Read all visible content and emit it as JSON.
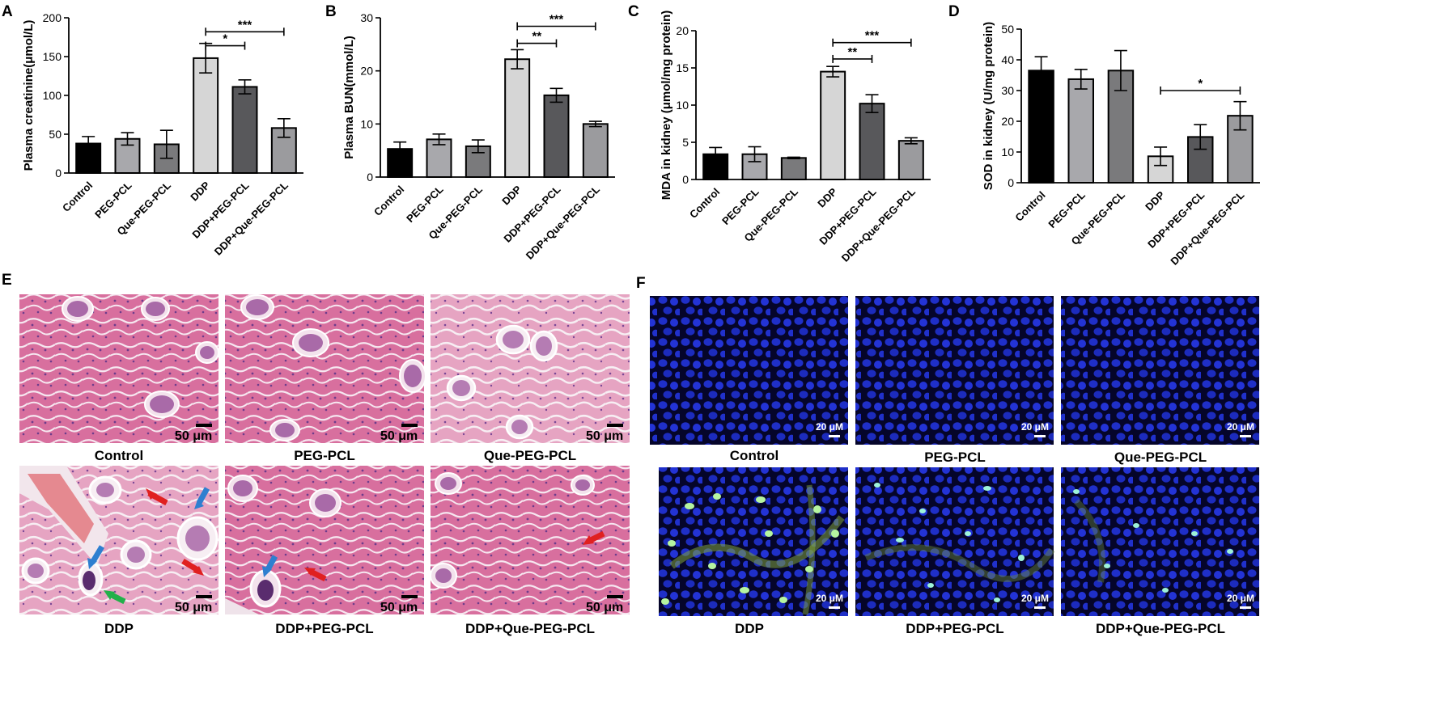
{
  "chart_data": [
    {
      "panel": "A",
      "type": "bar",
      "ylabel": "Plasma creatinine(μmol/L)",
      "categories": [
        "Control",
        "PEG-PCL",
        "Que-PEG-PCL",
        "DDP",
        "DDP+PEG-PCL",
        "DDP+Que-PEG-PCL"
      ],
      "values": [
        38,
        44,
        37,
        148,
        111,
        58
      ],
      "errors": [
        9,
        8,
        18,
        19,
        9,
        12
      ],
      "ylim": [
        0,
        200
      ],
      "yticks": [
        0,
        50,
        100,
        150,
        200
      ],
      "significance": [
        {
          "from": 3,
          "to": 4,
          "label": "*",
          "y": 164
        },
        {
          "from": 3,
          "to": 5,
          "label": "***",
          "y": 182
        }
      ]
    },
    {
      "panel": "B",
      "type": "bar",
      "ylabel": "Plasma BUN(mmol/L)",
      "categories": [
        "Control",
        "PEG-PCL",
        "Que-PEG-PCL",
        "DDP",
        "DDP+PEG-PCL",
        "DDP+Que-PEG-PCL"
      ],
      "values": [
        5.3,
        7.1,
        5.8,
        22.2,
        15.4,
        10.0
      ],
      "errors": [
        1.3,
        1.0,
        1.2,
        1.8,
        1.3,
        0.5
      ],
      "ylim": [
        0,
        30
      ],
      "yticks": [
        0,
        10,
        20,
        30
      ],
      "significance": [
        {
          "from": 3,
          "to": 4,
          "label": "**",
          "y": 25.2
        },
        {
          "from": 3,
          "to": 5,
          "label": "***",
          "y": 28.4
        }
      ]
    },
    {
      "panel": "C",
      "type": "bar",
      "ylabel": "MDA in kidney (μmol/mg protein)",
      "categories": [
        "Control",
        "PEG-PCL",
        "Que-PEG-PCL",
        "DDP",
        "DDP+PEG-PCL",
        "DDP+Que-PEG-PCL"
      ],
      "values": [
        3.4,
        3.4,
        2.9,
        14.5,
        10.2,
        5.2
      ],
      "errors": [
        0.9,
        1.0,
        0.1,
        0.7,
        1.2,
        0.4
      ],
      "ylim": [
        0,
        20
      ],
      "yticks": [
        0,
        5,
        10,
        15,
        20
      ],
      "significance": [
        {
          "from": 3,
          "to": 4,
          "label": "**",
          "y": 16.2
        },
        {
          "from": 3,
          "to": 5,
          "label": "***",
          "y": 18.4
        }
      ]
    },
    {
      "panel": "D",
      "type": "bar",
      "ylabel": "SOD in kidney (U/mg protein)",
      "categories": [
        "Control",
        "PEG-PCL",
        "Que-PEG-PCL",
        "DDP",
        "DDP+PEG-PCL",
        "DDP+Que-PEG-PCL"
      ],
      "values": [
        36.5,
        33.7,
        36.5,
        8.6,
        14.9,
        21.8
      ],
      "errors": [
        4.5,
        3.2,
        6.5,
        3.0,
        4.0,
        4.6
      ],
      "ylim": [
        0,
        50
      ],
      "yticks": [
        0,
        10,
        20,
        30,
        40,
        50
      ],
      "significance": [
        {
          "from": 3,
          "to": 5,
          "label": "*",
          "y": 30
        }
      ]
    }
  ],
  "bar_colors": [
    "#000000",
    "#a8a8ac",
    "#7a7a7c",
    "#d6d6d6",
    "#58585b",
    "#9b9b9e"
  ],
  "panel_labels": {
    "A": "A",
    "B": "B",
    "C": "C",
    "D": "D",
    "E": "E",
    "F": "F"
  },
  "histology": {
    "captions": [
      "Control",
      "PEG-PCL",
      "Que-PEG-PCL",
      "DDP",
      "DDP+PEG-PCL",
      "DDP+Que-PEG-PCL"
    ],
    "scale_bar": "50 μm"
  },
  "fluorescence": {
    "captions": [
      "Control",
      "PEG-PCL",
      "Que-PEG-PCL",
      "DDP",
      "DDP+PEG-PCL",
      "DDP+Que-PEG-PCL"
    ],
    "scale_bar": "20 μM"
  }
}
